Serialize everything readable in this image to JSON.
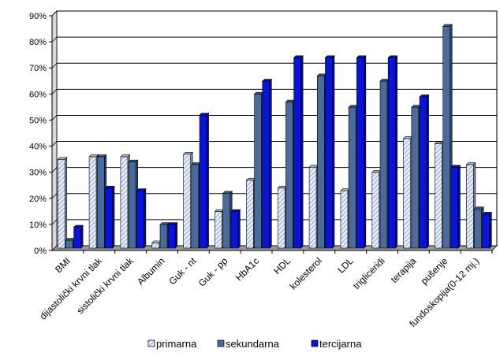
{
  "chart_data": {
    "type": "bar",
    "title": "",
    "xlabel": "",
    "ylabel": "",
    "ylim": [
      0,
      90
    ],
    "y_tick_step": 10,
    "y_tick_format": "percent",
    "grid": true,
    "legend_position": "bottom",
    "bar_style": "3d",
    "categories": [
      "BMI",
      "dijastolički krvni tlak",
      "sistolički krvni tlak",
      "Albumin",
      "Guk - nt",
      "Guk - pp",
      "HbA1c",
      "HDL",
      "kolesterol",
      "LDL",
      "trigliceridi",
      "terapija",
      "pušenje",
      "fundoskopija(0-12 mj.)"
    ],
    "series": [
      {
        "name": "primarna",
        "color": "#c9d7f0",
        "pattern": "hatch",
        "values": [
          34,
          35,
          35,
          2,
          36,
          14,
          26,
          23,
          31,
          22,
          29,
          42,
          40,
          32
        ]
      },
      {
        "name": "sekundarna",
        "color": "#4a6b9c",
        "pattern": "solid",
        "values": [
          3,
          35,
          33,
          9,
          32,
          21,
          59,
          56,
          66,
          54,
          64,
          54,
          85,
          15
        ]
      },
      {
        "name": "tercijarna",
        "color": "#0a14d8",
        "pattern": "solid",
        "values": [
          8,
          23,
          22,
          9,
          51,
          14,
          64,
          73,
          73,
          73,
          73,
          58,
          31,
          13
        ]
      }
    ]
  }
}
